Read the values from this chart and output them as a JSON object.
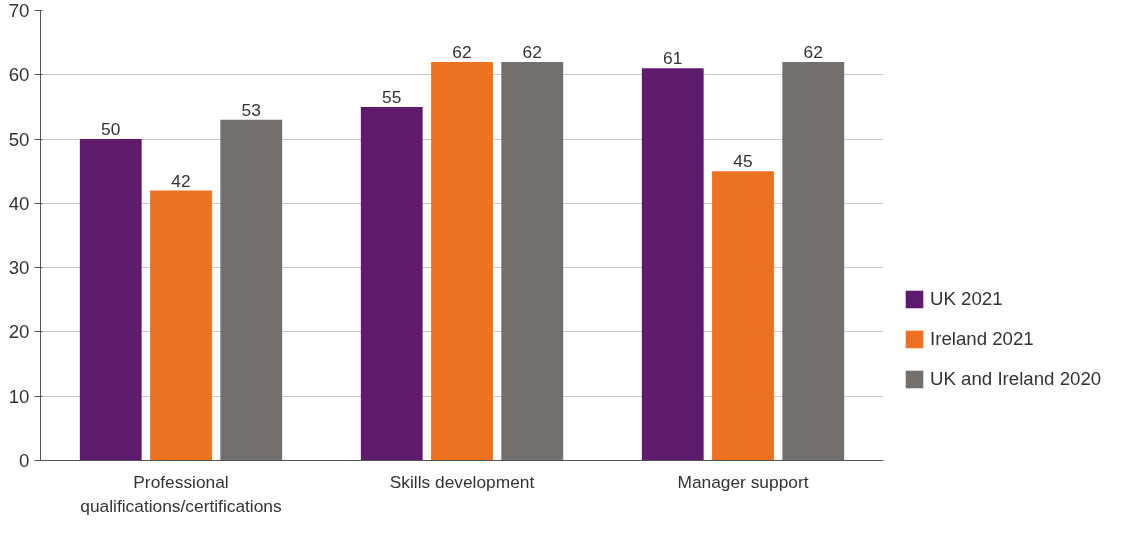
{
  "chart_data": {
    "type": "bar",
    "categories": [
      "Professional qualifications/certifications",
      "Skills development",
      "Manager support"
    ],
    "series": [
      {
        "name": "UK 2021",
        "color": "#5f1a6e",
        "values": [
          50,
          55,
          61
        ]
      },
      {
        "name": "Ireland 2021",
        "color": "#ec7120",
        "values": [
          42,
          62,
          45
        ]
      },
      {
        "name": "UK and Ireland 2020",
        "color": "#73706e",
        "values": [
          53,
          62,
          62
        ]
      }
    ],
    "ylim": [
      0,
      70
    ],
    "yticks": [
      0,
      10,
      20,
      30,
      40,
      50,
      60,
      70
    ],
    "grid": "y",
    "legend": "bottom right",
    "data_labels": true
  }
}
